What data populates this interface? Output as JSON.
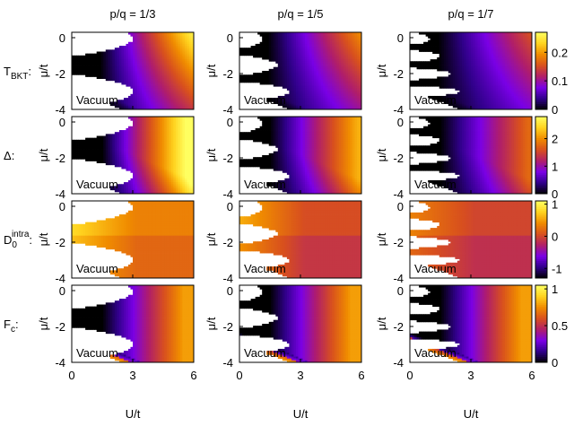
{
  "chart_data": {
    "type": "heatmap",
    "columns": [
      "p/q = 1/3",
      "p/q = 1/5",
      "p/q = 1/7"
    ],
    "column_ratios": [
      0.3333,
      0.2,
      0.142857
    ],
    "rows": [
      {
        "label": "T",
        "label_sub": "BKT",
        "label_suffix": ":",
        "clim": [
          0,
          0.27
        ],
        "cb_ticks": [
          {
            "v": 0.2,
            "t": "0.2"
          },
          {
            "v": 0.1,
            "t": "0.1"
          },
          {
            "v": 0,
            "t": "0"
          }
        ]
      },
      {
        "label": "Δ",
        "label_sub": "",
        "label_suffix": ":",
        "clim": [
          0,
          2.8
        ],
        "cb_ticks": [
          {
            "v": 2,
            "t": "2"
          },
          {
            "v": 1,
            "t": "1"
          },
          {
            "v": 0,
            "t": "0"
          }
        ]
      },
      {
        "label": "D",
        "label_sub": "0",
        "label_sup": "intra",
        "label_suffix": ":",
        "clim": [
          -1.3,
          1.1
        ],
        "cb_ticks": [
          {
            "v": 1,
            "t": "1"
          },
          {
            "v": 0,
            "t": "0"
          },
          {
            "v": -1,
            "t": "-1"
          }
        ]
      },
      {
        "label": "F",
        "label_sub": "c",
        "label_suffix": ":",
        "clim": [
          0,
          1.05
        ],
        "cb_ticks": [
          {
            "v": 1,
            "t": "1"
          },
          {
            "v": 0.5,
            "t": "0.5"
          },
          {
            "v": 0,
            "t": "0"
          }
        ]
      }
    ],
    "xlabel": "U/t",
    "ylabel": "μ/t",
    "xlim": [
      0,
      6
    ],
    "ylim": [
      -4,
      0.3
    ],
    "xticks": [
      0,
      3,
      6
    ],
    "yticks": [
      0,
      -2,
      -4
    ],
    "annotation": "Vacuum",
    "colormap": [
      "#000000",
      "#30008a",
      "#7a00e6",
      "#b01e6a",
      "#d8501e",
      "#f08c00",
      "#ffd21e",
      "#ffff60"
    ]
  }
}
